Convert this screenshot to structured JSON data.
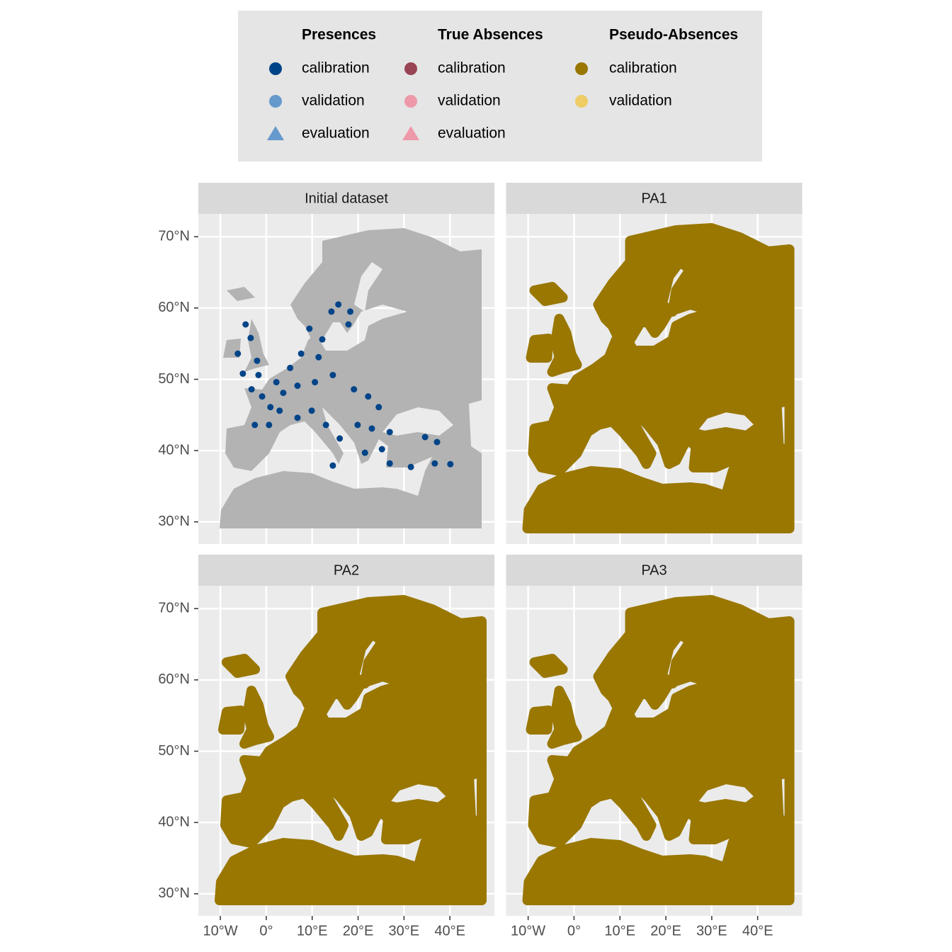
{
  "chart_data": {
    "type": "scatter",
    "xlim": [
      -14.8,
      49.7
    ],
    "ylim": [
      26.9,
      73.2
    ],
    "xticks": [
      {
        "value": -10,
        "label": "10°W"
      },
      {
        "value": 0,
        "label": "0°"
      },
      {
        "value": 10,
        "label": "10°E"
      },
      {
        "value": 20,
        "label": "20°E"
      },
      {
        "value": 30,
        "label": "30°E"
      },
      {
        "value": 40,
        "label": "40°E"
      }
    ],
    "yticks": [
      {
        "value": 30,
        "label": "30°N"
      },
      {
        "value": 40,
        "label": "40°N"
      },
      {
        "value": 50,
        "label": "50°N"
      },
      {
        "value": 60,
        "label": "60°N"
      },
      {
        "value": 70,
        "label": "70°N"
      }
    ],
    "legend": [
      {
        "title": "Presences",
        "items": [
          {
            "label": "calibration",
            "color": "#004488",
            "shape": "circle"
          },
          {
            "label": "validation",
            "color": "#6699cc",
            "shape": "circle"
          },
          {
            "label": "evaluation",
            "color": "#6699cc",
            "shape": "triangle"
          }
        ]
      },
      {
        "title": "True Absences",
        "items": [
          {
            "label": "calibration",
            "color": "#994455",
            "shape": "circle"
          },
          {
            "label": "validation",
            "color": "#ee99aa",
            "shape": "circle"
          },
          {
            "label": "evaluation",
            "color": "#ee99aa",
            "shape": "triangle"
          }
        ]
      },
      {
        "title": "Pseudo-Absences",
        "items": [
          {
            "label": "calibration",
            "color": "#997700",
            "shape": "circle"
          },
          {
            "label": "validation",
            "color": "#eecc66",
            "shape": "circle"
          }
        ]
      }
    ],
    "facets": [
      {
        "title": "Initial dataset",
        "series": [
          {
            "color": "#004488",
            "x": [
              -4.5,
              -6.2,
              -3.4,
              -2,
              -5.1,
              -3.2,
              -0.9,
              2.2,
              5.2,
              7.6,
              9.4,
              12.2,
              14.2,
              15.7,
              17.9,
              18.3,
              10.6,
              14.5,
              19.1,
              22.2,
              24.5,
              2.9,
              0.6,
              -2.5,
              6.8,
              9.9,
              13,
              16,
              14.5,
              19.9,
              23,
              26.9,
              21.5,
              25.2,
              26.9,
              31.5,
              34.6,
              37.2,
              36.7,
              40.1,
              3.7,
              6.8,
              -1.7,
              11.4,
              0.9
            ],
            "y": [
              57.7,
              53.6,
              55.8,
              52.6,
              50.8,
              48.6,
              47.6,
              49.6,
              51.6,
              53.6,
              57.1,
              55.6,
              59.5,
              60.5,
              57.7,
              59.5,
              49.6,
              50.6,
              48.6,
              47.6,
              46.1,
              45.6,
              43.6,
              43.6,
              44.6,
              45.6,
              43.6,
              41.7,
              37.9,
              43.6,
              43.1,
              42.6,
              39.7,
              40.2,
              38.2,
              37.7,
              41.9,
              41.2,
              38.2,
              38.1,
              48.1,
              49.1,
              50.6,
              53.1,
              46.1
            ]
          }
        ]
      },
      {
        "title": "PA1"
      },
      {
        "title": "PA2"
      },
      {
        "title": "PA3"
      }
    ]
  }
}
